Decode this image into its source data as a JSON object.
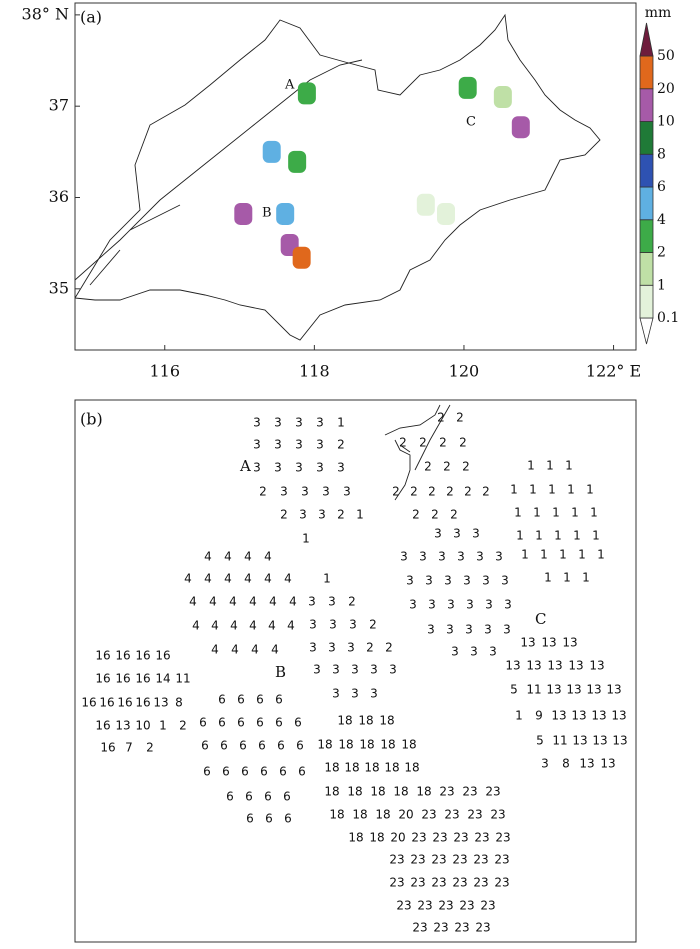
{
  "panel_a": {
    "label": "(a)",
    "xlim": [
      114.8,
      122.3
    ],
    "ylim": [
      34.33,
      38.13
    ],
    "xticks": [
      116,
      118,
      120,
      {
        "value": 122,
        "label": "122° E"
      }
    ],
    "yticks": [
      35,
      36,
      37,
      {
        "value": 38,
        "label": "38° N"
      }
    ],
    "point_labels": [
      "A",
      "B",
      "C"
    ],
    "patches": [
      {
        "lon": 117.9,
        "lat": 37.14,
        "value": 3
      },
      {
        "lon": 120.05,
        "lat": 37.2,
        "value": 3
      },
      {
        "lon": 120.52,
        "lat": 37.1,
        "value": 1.5
      },
      {
        "lon": 120.76,
        "lat": 36.77,
        "value": 15
      },
      {
        "lon": 117.43,
        "lat": 36.5,
        "value": 5
      },
      {
        "lon": 117.77,
        "lat": 36.39,
        "value": 3
      },
      {
        "lon": 117.05,
        "lat": 35.82,
        "value": 12
      },
      {
        "lon": 117.61,
        "lat": 35.82,
        "value": 5
      },
      {
        "lon": 117.67,
        "lat": 35.48,
        "value": 12
      },
      {
        "lon": 117.83,
        "lat": 35.34,
        "value": 25
      },
      {
        "lon": 119.49,
        "lat": 35.92,
        "value": 0.5
      },
      {
        "lon": 119.76,
        "lat": 35.82,
        "value": 0.5
      }
    ],
    "colorbar": {
      "unit": "mm",
      "levels": [
        0.1,
        1,
        2,
        4,
        6,
        8,
        10,
        20,
        50
      ],
      "colors": [
        "#ffffff",
        "#e3f2da",
        "#bfe0a6",
        "#3dab48",
        "#5fb0e2",
        "#2e52b2",
        "#1f7a37",
        "#a65aa8",
        "#e0681c",
        "#6e1c3c"
      ]
    }
  },
  "panel_b": {
    "label": "(b)",
    "point_labels": [
      "A",
      "B",
      "C"
    ],
    "groups": [
      [
        [
          3,
          3,
          3,
          3,
          1
        ],
        [
          3,
          3,
          3,
          3,
          2
        ],
        [
          3,
          3,
          3,
          3,
          3
        ],
        [
          2,
          3,
          3,
          3,
          3
        ],
        [
          2,
          3,
          3,
          2,
          1
        ],
        [
          1
        ]
      ],
      [
        [
          2,
          2
        ],
        [
          2,
          2,
          2,
          2
        ],
        [
          2,
          2,
          2
        ],
        [
          2,
          2,
          2,
          2,
          2,
          2
        ],
        [
          2,
          2,
          2
        ]
      ],
      [
        [
          1,
          1,
          1
        ],
        [
          1,
          1,
          1,
          1,
          1
        ],
        [
          1,
          1,
          1,
          1,
          1
        ],
        [
          1,
          1,
          1,
          1,
          1
        ],
        [
          1,
          1,
          1,
          1,
          1
        ],
        [
          1,
          1,
          1
        ]
      ],
      [
        [
          3,
          3,
          3
        ],
        [
          3,
          3,
          3,
          3,
          3,
          3
        ],
        [
          3,
          3,
          3,
          3,
          3,
          3
        ],
        [
          3,
          3,
          3,
          3,
          3,
          3
        ],
        [
          3,
          3,
          3,
          3,
          3
        ],
        [
          3,
          3,
          3
        ]
      ],
      [
        [
          4,
          4,
          4,
          4
        ],
        [
          4,
          4,
          4,
          4,
          4,
          4
        ],
        [
          4,
          4,
          4,
          4,
          4,
          4
        ],
        [
          4,
          4,
          4,
          4,
          4,
          4
        ],
        [
          4,
          4,
          4,
          4
        ]
      ],
      [
        [
          1
        ],
        [
          3,
          3,
          2
        ],
        [
          3,
          3,
          3,
          2
        ],
        [
          3,
          3,
          3,
          2,
          2
        ],
        [
          3,
          3,
          3,
          3,
          3
        ],
        [
          3,
          3,
          3
        ]
      ],
      [
        [
          16,
          16,
          16,
          16
        ],
        [
          16,
          16,
          16,
          14,
          11
        ],
        [
          16,
          16,
          16,
          16,
          13,
          8
        ],
        [
          16,
          13,
          10,
          1,
          2
        ],
        [
          16,
          7,
          2
        ]
      ],
      [
        [
          6,
          6,
          6,
          6
        ],
        [
          6,
          6,
          6,
          6,
          6,
          6
        ],
        [
          6,
          6,
          6,
          6,
          6,
          6
        ],
        [
          6,
          6,
          6,
          6,
          6,
          6
        ],
        [
          6,
          6,
          6,
          6
        ],
        [
          6,
          6,
          6
        ]
      ],
      [
        [
          18,
          18,
          18
        ],
        [
          18,
          18,
          18,
          18,
          18
        ],
        [
          18,
          18,
          18,
          18,
          18
        ],
        [
          18,
          18,
          18,
          18,
          18,
          23,
          23,
          23
        ],
        [
          18,
          18,
          18,
          20,
          23,
          23,
          23,
          23
        ],
        [
          18,
          18,
          20,
          23,
          23,
          23,
          23,
          23
        ],
        [
          23,
          23,
          23,
          23,
          23,
          23
        ],
        [
          23,
          23,
          23,
          23,
          23,
          23
        ],
        [
          23,
          23,
          23,
          23,
          23
        ],
        [
          23,
          23,
          23,
          23
        ]
      ],
      [
        [
          13,
          13,
          13
        ],
        [
          13,
          13,
          13,
          13,
          13
        ],
        [
          5,
          11,
          13,
          13,
          13,
          13
        ],
        [
          1,
          9,
          13,
          13,
          13,
          13
        ],
        [
          5,
          11,
          13,
          13,
          13
        ],
        [
          3,
          8,
          13,
          13
        ]
      ]
    ]
  }
}
